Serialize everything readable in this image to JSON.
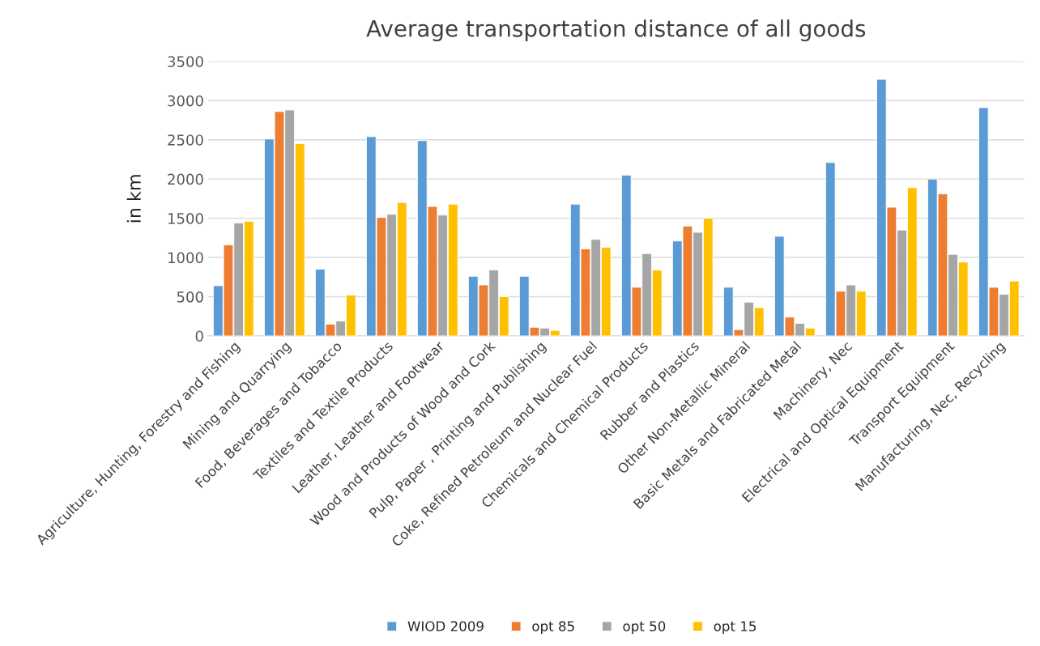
{
  "chart_data": {
    "type": "bar",
    "title": "Average transportation distance of all goods",
    "ylabel": "in km",
    "categories": [
      "Agriculture, Hunting, Forestry and Fishing",
      "Mining and Quarrying",
      "Food, Beverages and Tobacco",
      "Textiles and Textile Products",
      "Leather, Leather and Footwear",
      "Wood and Products of Wood and Cork",
      "Pulp, Paper , Printing and Publishing",
      "Coke, Refined Petroleum and Nuclear Fuel",
      "Chemicals and Chemical Products",
      "Rubber and Plastics",
      "Other Non-Metallic Mineral",
      "Basic Metals and Fabricated Metal",
      "Machinery, Nec",
      "Electrical and Optical Equipment",
      "Transport Equipment",
      "Manufacturing, Nec, Recycling"
    ],
    "series": [
      {
        "name": "WIOD 2009",
        "color": "#5b9bd5",
        "values": [
          640,
          2510,
          850,
          2540,
          2490,
          760,
          760,
          1680,
          2050,
          1210,
          620,
          1270,
          2210,
          3270,
          2000,
          2910
        ]
      },
      {
        "name": "opt 85",
        "color": "#ed7d31",
        "values": [
          1160,
          2860,
          150,
          1510,
          1650,
          650,
          110,
          1110,
          620,
          1400,
          80,
          240,
          570,
          1640,
          1810,
          620
        ]
      },
      {
        "name": "opt 50",
        "color": "#a5a5a5",
        "values": [
          1440,
          2880,
          190,
          1550,
          1540,
          840,
          100,
          1230,
          1050,
          1320,
          430,
          160,
          650,
          1350,
          1040,
          530
        ]
      },
      {
        "name": "opt 15",
        "color": "#ffc000",
        "values": [
          1460,
          2450,
          520,
          1700,
          1680,
          500,
          70,
          1130,
          840,
          1500,
          360,
          100,
          570,
          1890,
          940,
          700
        ]
      }
    ],
    "ylim": [
      0,
      3500
    ],
    "yticks": [
      0,
      500,
      1000,
      1500,
      2000,
      2500,
      3000,
      3500
    ],
    "grid": "y",
    "legend": "bottom"
  }
}
